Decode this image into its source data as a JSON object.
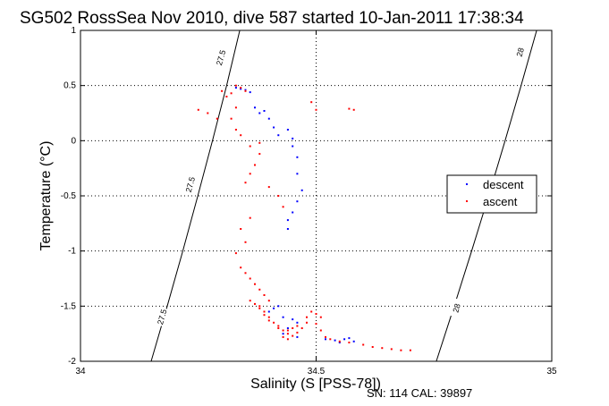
{
  "chart_data": {
    "type": "scatter",
    "title": "SG502 RossSea Nov 2010, dive 587 started 10-Jan-2011 17:38:34",
    "xlabel": "Salinity (S [PSS-78])",
    "ylabel": "Temperature (°C)",
    "xlim": [
      34,
      35
    ],
    "ylim": [
      -2,
      1
    ],
    "x_ticks": [
      "34",
      "34.5",
      "35"
    ],
    "y_ticks": [
      "1",
      "0.5",
      "0",
      "-0.5",
      "-1",
      "-1.5",
      "-2"
    ],
    "grid": true,
    "legend": {
      "placement": "right",
      "entries": [
        "descent",
        "ascent"
      ]
    },
    "footer": "SN: 114  CAL: 39897",
    "contours": [
      {
        "label": "27.5",
        "color": "#000000",
        "points": [
          [
            34.15,
            -2.0
          ],
          [
            34.184,
            -1.5
          ],
          [
            34.217,
            -1.0
          ],
          [
            34.249,
            -0.5
          ],
          [
            34.28,
            0.0
          ],
          [
            34.31,
            0.5
          ],
          [
            34.338,
            1.0
          ]
        ],
        "label_positions": [
          [
            34.3,
            0.75
          ],
          [
            34.235,
            -0.4
          ],
          [
            34.175,
            -1.6
          ]
        ]
      },
      {
        "label": "28",
        "color": "#000000",
        "points": [
          [
            34.755,
            -2.0
          ],
          [
            34.793,
            -1.5
          ],
          [
            34.83,
            -1.0
          ],
          [
            34.866,
            -0.5
          ],
          [
            34.901,
            0.0
          ],
          [
            34.935,
            0.5
          ],
          [
            34.968,
            1.0
          ]
        ],
        "label_positions": [
          [
            34.935,
            0.8
          ],
          [
            34.8,
            -1.52
          ]
        ]
      }
    ],
    "series": [
      {
        "name": "descent",
        "color": "#0000ff",
        "points": [
          [
            34.33,
            0.48
          ],
          [
            34.34,
            0.47
          ],
          [
            34.35,
            0.46
          ],
          [
            34.36,
            0.44
          ],
          [
            34.37,
            0.3
          ],
          [
            34.38,
            0.25
          ],
          [
            34.39,
            0.27
          ],
          [
            34.4,
            0.2
          ],
          [
            34.41,
            0.12
          ],
          [
            34.42,
            0.05
          ],
          [
            34.44,
            0.1
          ],
          [
            34.45,
            0.02
          ],
          [
            34.45,
            -0.05
          ],
          [
            34.46,
            -0.15
          ],
          [
            34.46,
            -0.3
          ],
          [
            34.47,
            -0.45
          ],
          [
            34.46,
            -0.55
          ],
          [
            34.45,
            -0.65
          ],
          [
            34.44,
            -0.72
          ],
          [
            34.44,
            -0.8
          ],
          [
            34.42,
            -1.5
          ],
          [
            34.41,
            -1.52
          ],
          [
            34.4,
            -1.55
          ],
          [
            34.43,
            -1.6
          ],
          [
            34.45,
            -1.62
          ],
          [
            34.46,
            -1.65
          ],
          [
            34.44,
            -1.7
          ],
          [
            34.43,
            -1.75
          ],
          [
            34.46,
            -1.78
          ],
          [
            34.52,
            -1.8
          ],
          [
            34.54,
            -1.81
          ],
          [
            34.56,
            -1.8
          ],
          [
            34.57,
            -1.79
          ],
          [
            34.58,
            -1.82
          ],
          [
            34.55,
            -1.83
          ]
        ]
      },
      {
        "name": "ascent",
        "color": "#ff0000",
        "points": [
          [
            34.25,
            0.28
          ],
          [
            34.27,
            0.25
          ],
          [
            34.29,
            0.2
          ],
          [
            34.3,
            0.45
          ],
          [
            34.31,
            0.4
          ],
          [
            34.32,
            0.43
          ],
          [
            34.33,
            0.5
          ],
          [
            34.34,
            0.48
          ],
          [
            34.35,
            0.45
          ],
          [
            34.33,
            0.3
          ],
          [
            34.32,
            0.2
          ],
          [
            34.33,
            0.1
          ],
          [
            34.34,
            0.05
          ],
          [
            34.36,
            -0.05
          ],
          [
            34.38,
            -0.02
          ],
          [
            34.38,
            -0.12
          ],
          [
            34.37,
            -0.22
          ],
          [
            34.36,
            -0.3
          ],
          [
            34.35,
            -0.38
          ],
          [
            34.4,
            -0.42
          ],
          [
            34.42,
            -0.5
          ],
          [
            34.43,
            -0.6
          ],
          [
            34.36,
            -0.7
          ],
          [
            34.34,
            -0.8
          ],
          [
            34.35,
            -0.92
          ],
          [
            34.33,
            -1.02
          ],
          [
            34.49,
            0.35
          ],
          [
            34.5,
            0.28
          ],
          [
            34.57,
            0.29
          ],
          [
            34.58,
            0.28
          ],
          [
            34.34,
            -1.15
          ],
          [
            34.35,
            -1.2
          ],
          [
            34.36,
            -1.25
          ],
          [
            34.37,
            -1.3
          ],
          [
            34.38,
            -1.35
          ],
          [
            34.39,
            -1.4
          ],
          [
            34.4,
            -1.45
          ],
          [
            34.38,
            -1.5
          ],
          [
            34.39,
            -1.55
          ],
          [
            34.4,
            -1.6
          ],
          [
            34.41,
            -1.65
          ],
          [
            34.42,
            -1.7
          ],
          [
            34.43,
            -1.72
          ],
          [
            34.44,
            -1.75
          ],
          [
            34.45,
            -1.77
          ],
          [
            34.46,
            -1.74
          ],
          [
            34.47,
            -1.7
          ],
          [
            34.48,
            -1.65
          ],
          [
            34.48,
            -1.6
          ],
          [
            34.49,
            -1.55
          ],
          [
            34.5,
            -1.57
          ],
          [
            34.51,
            -1.6
          ],
          [
            34.5,
            -1.66
          ],
          [
            34.51,
            -1.72
          ],
          [
            34.52,
            -1.78
          ],
          [
            34.53,
            -1.8
          ],
          [
            34.55,
            -1.82
          ],
          [
            34.57,
            -1.83
          ],
          [
            34.6,
            -1.85
          ],
          [
            34.62,
            -1.87
          ],
          [
            34.64,
            -1.88
          ],
          [
            34.66,
            -1.89
          ],
          [
            34.68,
            -1.9
          ],
          [
            34.7,
            -1.9
          ],
          [
            34.36,
            -1.45
          ],
          [
            34.37,
            -1.48
          ],
          [
            34.38,
            -1.52
          ],
          [
            34.39,
            -1.58
          ],
          [
            34.4,
            -1.63
          ],
          [
            34.42,
            -1.68
          ],
          [
            34.44,
            -1.72
          ],
          [
            34.45,
            -1.7
          ],
          [
            34.46,
            -1.68
          ],
          [
            34.43,
            -1.78
          ],
          [
            34.44,
            -1.8
          ]
        ]
      }
    ]
  }
}
